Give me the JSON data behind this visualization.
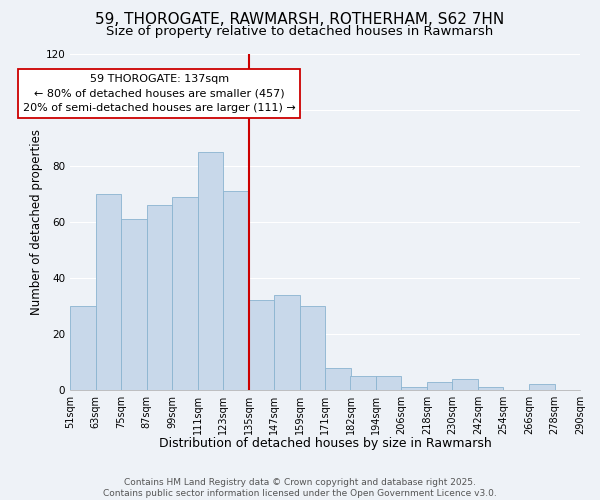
{
  "title": "59, THOROGATE, RAWMARSH, ROTHERHAM, S62 7HN",
  "subtitle": "Size of property relative to detached houses in Rawmarsh",
  "xlabel": "Distribution of detached houses by size in Rawmarsh",
  "ylabel": "Number of detached properties",
  "bar_color": "#c8d8ea",
  "bar_edge_color": "#8ab4d0",
  "bin_labels": [
    "51sqm",
    "63sqm",
    "75sqm",
    "87sqm",
    "99sqm",
    "111sqm",
    "123sqm",
    "135sqm",
    "147sqm",
    "159sqm",
    "171sqm",
    "182sqm",
    "194sqm",
    "206sqm",
    "218sqm",
    "230sqm",
    "242sqm",
    "254sqm",
    "266sqm",
    "278sqm",
    "290sqm"
  ],
  "bar_heights": [
    30,
    70,
    61,
    66,
    69,
    85,
    71,
    32,
    34,
    30,
    8,
    5,
    5,
    1,
    3,
    4,
    1,
    0,
    2,
    0
  ],
  "vline_bin_index": 7,
  "vline_color": "#cc0000",
  "annotation_text": "59 THOROGATE: 137sqm\n← 80% of detached houses are smaller (457)\n20% of semi-detached houses are larger (111) →",
  "annotation_box_color": "white",
  "annotation_box_edge_color": "#cc0000",
  "ylim": [
    0,
    120
  ],
  "yticks": [
    0,
    20,
    40,
    60,
    80,
    100,
    120
  ],
  "footer1": "Contains HM Land Registry data © Crown copyright and database right 2025.",
  "footer2": "Contains public sector information licensed under the Open Government Licence v3.0.",
  "background_color": "#eef2f7",
  "grid_color": "#ffffff",
  "title_fontsize": 11,
  "subtitle_fontsize": 9.5,
  "xlabel_fontsize": 9,
  "ylabel_fontsize": 8.5,
  "tick_fontsize": 7.5,
  "annotation_fontsize": 8,
  "footer_fontsize": 6.5
}
